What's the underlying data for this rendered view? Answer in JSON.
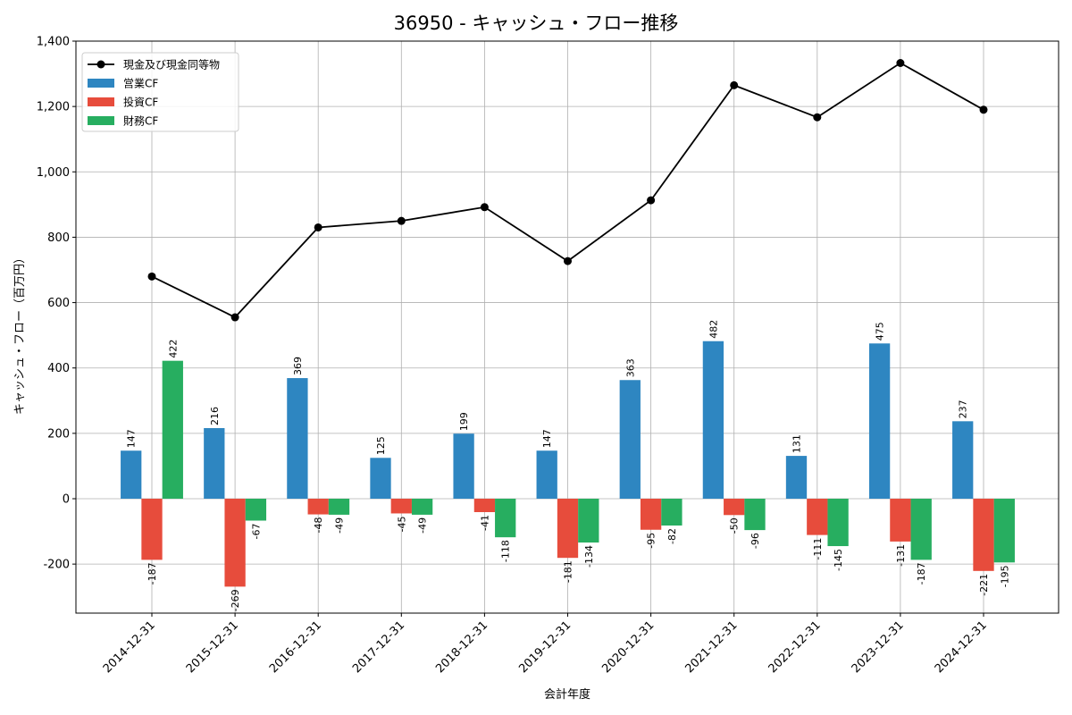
{
  "chart_data": {
    "type": "bar+line",
    "title": "36950 - キャッシュ・フロー推移",
    "xlabel": "会計年度",
    "ylabel": "キャッシュ・フロー（百万円）",
    "ylim": [
      -350,
      1400
    ],
    "yticks": [
      -200,
      0,
      200,
      400,
      600,
      800,
      1000,
      1200,
      1400
    ],
    "ytick_labels": [
      "-200",
      "0",
      "200",
      "400",
      "600",
      "800",
      "1,000",
      "1,200",
      "1,400"
    ],
    "grid": true,
    "legend_position": "top-left",
    "categories": [
      "2014-12-31",
      "2015-12-31",
      "2016-12-31",
      "2017-12-31",
      "2018-12-31",
      "2019-12-31",
      "2020-12-31",
      "2021-12-31",
      "2022-12-31",
      "2023-12-31",
      "2024-12-31"
    ],
    "series": [
      {
        "name": "営業CF",
        "kind": "bar",
        "color": "#2e86c1",
        "values": [
          147,
          216,
          369,
          125,
          199,
          147,
          363,
          482,
          131,
          475,
          237
        ]
      },
      {
        "name": "投資CF",
        "kind": "bar",
        "color": "#e74c3c",
        "values": [
          -187,
          -269,
          -48,
          -45,
          -41,
          -181,
          -95,
          -50,
          -111,
          -131,
          -221
        ]
      },
      {
        "name": "財務CF",
        "kind": "bar",
        "color": "#27ae60",
        "values": [
          422,
          -67,
          -49,
          -49,
          -118,
          -134,
          -82,
          -96,
          -145,
          -187,
          -195
        ]
      },
      {
        "name": "現金及び現金同等物",
        "kind": "line",
        "color": "#000000",
        "values": [
          680,
          555,
          830,
          850,
          892,
          727,
          913,
          1265,
          1167,
          1333,
          1190
        ]
      }
    ]
  }
}
